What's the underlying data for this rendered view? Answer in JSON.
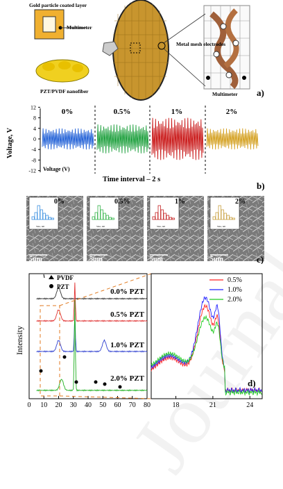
{
  "panel_a": {
    "label_gold": "Gold particle coated layer",
    "label_multimeter_top": "Multimeter",
    "label_fiber": "PZT/PVDF nanofiber",
    "label_mesh": "Metal mesh electrodes",
    "label_multimeter_bottom": "Multimeter",
    "panel_letter": "a)"
  },
  "panel_b": {
    "ylabel": "Voltage, V",
    "yticks": [
      "12",
      "8",
      "4",
      "0",
      "-4",
      "-8",
      "-12"
    ],
    "legend": "Voltage (V)",
    "xlabel": "Time interval – 2 s",
    "segments": [
      {
        "label": "0%",
        "color": "#1f5fd6"
      },
      {
        "label": "0.5%",
        "color": "#1a9e3a"
      },
      {
        "label": "1%",
        "color": "#c81414"
      },
      {
        "label": "2%",
        "color": "#d4a020"
      }
    ],
    "panel_letter": "b)"
  },
  "panel_c": {
    "images": [
      {
        "percent": "0%",
        "scale": "5um",
        "bar_color": "#3a8fe0",
        "hist_axis": "Size, nm"
      },
      {
        "percent": "0.5%",
        "scale": "5um",
        "bar_color": "#35b34a",
        "hist_axis": "Size, nm"
      },
      {
        "percent": "1%",
        "scale": "5um",
        "bar_color": "#c42020",
        "hist_axis": "Size, nm"
      },
      {
        "percent": "2%",
        "scale": "5um",
        "bar_color": "#c9a040",
        "hist_axis": "Size, nm"
      }
    ],
    "panel_letter": "c)"
  },
  "panel_d": {
    "ylabel": "Intensity",
    "legend_pvdf": "PVDF",
    "legend_pzt": "PZT",
    "curve_labels": [
      "0.0% PZT",
      "0.5% PZT",
      "1.0% PZT",
      "2.0% PZT"
    ],
    "xticks": [
      "0",
      "10",
      "20",
      "30",
      "40",
      "50",
      "60",
      "70",
      "80"
    ],
    "zoom_legend": [
      "0.5%",
      "1.0%",
      "2.0%"
    ],
    "zoom_xticks": [
      "18",
      "21",
      "24"
    ],
    "panel_letter": "d)"
  },
  "chart_data": [
    {
      "type": "line",
      "title": "",
      "ylabel": "Voltage, V",
      "xlabel": "Time interval – 2 s",
      "ylim": [
        -12,
        12
      ],
      "series": [
        {
          "name": "0%",
          "amplitude": 4
        },
        {
          "name": "0.5%",
          "amplitude": 5.5
        },
        {
          "name": "1%",
          "amplitude": 8
        },
        {
          "name": "2%",
          "amplitude": 4
        }
      ]
    },
    {
      "type": "line",
      "ylabel": "Intensity",
      "xlim": [
        0,
        80
      ],
      "series": [
        {
          "name": "0.0% PZT",
          "peaks": [
            20
          ]
        },
        {
          "name": "0.5% PZT",
          "peaks": [
            20,
            31
          ]
        },
        {
          "name": "1.0% PZT",
          "peaks": [
            20,
            31,
            51
          ]
        },
        {
          "name": "2.0% PZT",
          "peaks": [
            22,
            31
          ]
        }
      ]
    },
    {
      "type": "line",
      "xlim": [
        16,
        25
      ],
      "series": [
        {
          "name": "0.5%",
          "color": "#ff2020"
        },
        {
          "name": "1.0%",
          "color": "#2020ff"
        },
        {
          "name": "2.0%",
          "color": "#20cc20"
        }
      ]
    }
  ]
}
